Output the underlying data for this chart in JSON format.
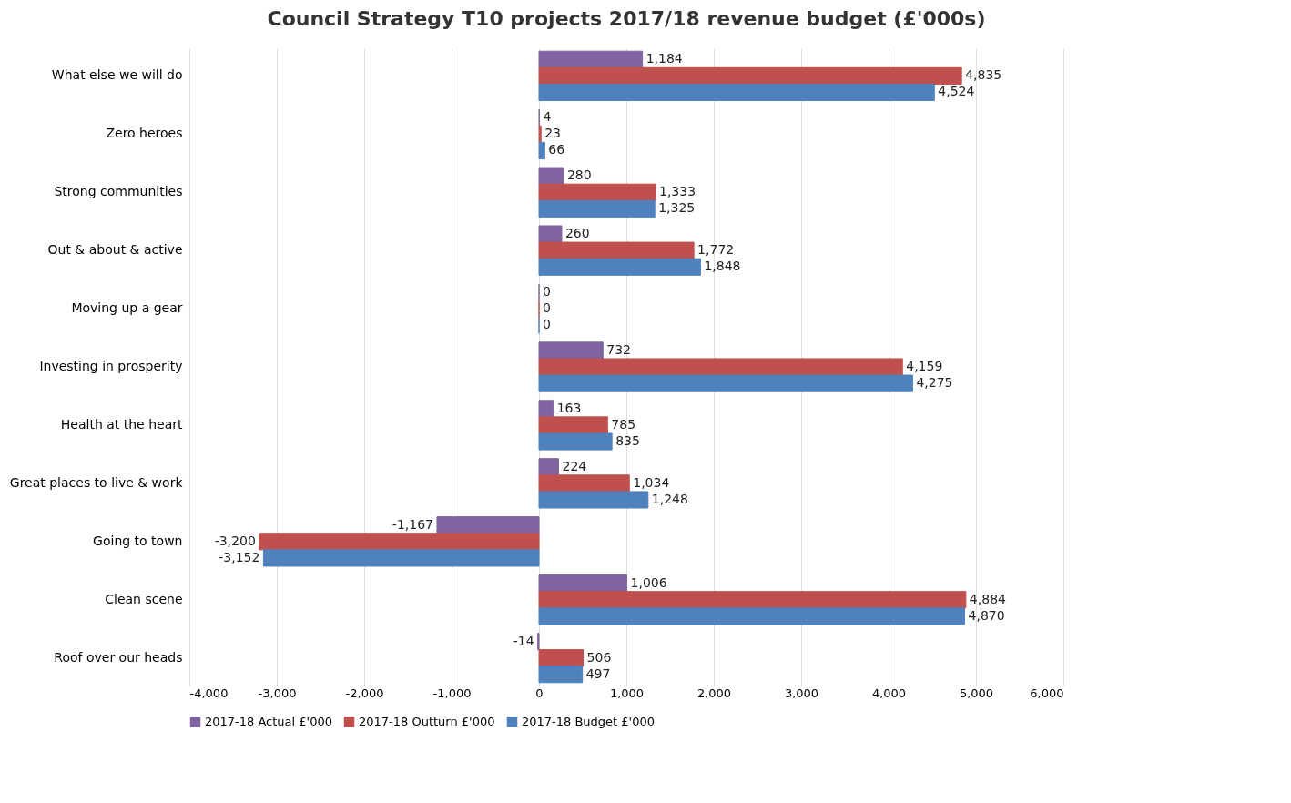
{
  "chart_data": {
    "type": "bar",
    "orientation": "horizontal",
    "title": "Council Strategy T10 projects 2017/18 revenue budget (£'000s)",
    "categories": [
      "What else we will do",
      "Zero heroes",
      "Strong communities",
      "Out & about & active",
      "Moving up a gear",
      "Investing in prosperity",
      "Health at the heart",
      "Great places to live & work",
      "Going to town",
      "Clean scene",
      "Roof over our heads"
    ],
    "series": [
      {
        "name": "2017-18 Actual £'000",
        "color": "#8064a2",
        "values": [
          1184,
          4,
          280,
          260,
          0,
          732,
          163,
          224,
          -1167,
          1006,
          -14
        ],
        "value_labels": [
          "1,184",
          "4",
          "280",
          "260",
          "0",
          "732",
          "163",
          "224",
          "-1,167",
          "1,006",
          "-14"
        ]
      },
      {
        "name": "2017-18 Outturn £'000",
        "color": "#c0504d",
        "values": [
          4835,
          23,
          1333,
          1772,
          0,
          4159,
          785,
          1034,
          -3200,
          4884,
          506
        ],
        "value_labels": [
          "4,835",
          "23",
          "1,333",
          "1,772",
          "0",
          "4,159",
          "785",
          "1,034",
          "-3,200",
          "4,884",
          "506"
        ]
      },
      {
        "name": "2017-18 Budget £'000",
        "color": "#4f81bd",
        "values": [
          4524,
          66,
          1325,
          1848,
          0,
          4275,
          835,
          1248,
          -3152,
          4870,
          497
        ],
        "value_labels": [
          "4,524",
          "66",
          "1,325",
          "1,848",
          "0",
          "4,275",
          "835",
          "1,248",
          "-3,152",
          "4,870",
          "497"
        ]
      }
    ],
    "xlim": [
      -4000,
      6000
    ],
    "xticks": [
      {
        "value": -4000,
        "label": "-4,000"
      },
      {
        "value": -3000,
        "label": "-3,000"
      },
      {
        "value": -2000,
        "label": "-2,000"
      },
      {
        "value": -1000,
        "label": "-1,000"
      },
      0,
      {
        "value": 1000,
        "label": "1,000"
      },
      {
        "value": 2000,
        "label": "2,000"
      },
      {
        "value": 3000,
        "label": "3,000"
      },
      {
        "value": 4000,
        "label": "4,000"
      },
      {
        "value": 5000,
        "label": "5,000"
      },
      {
        "value": 6000,
        "label": "6,000"
      }
    ],
    "grid": "x",
    "legend": "bottom"
  }
}
